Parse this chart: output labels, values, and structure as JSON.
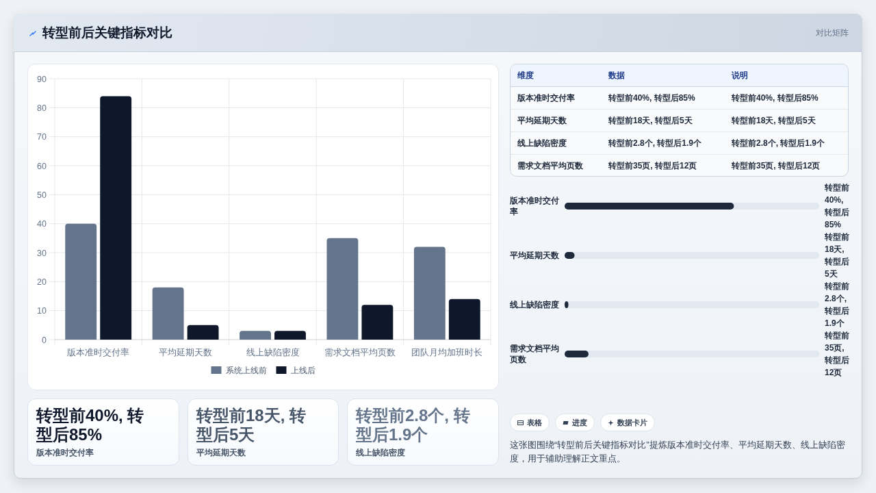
{
  "chart_data": [
    {
      "type": "other",
      "title": "转型前后关键指标对比",
      "subtitle": "对比矩阵"
    },
    {
      "type": "bar",
      "categories": [
        "版本准时交付率",
        "平均延期天数",
        "线上缺陷密度",
        "需求文档平均页数",
        "团队月均加班时长"
      ],
      "series": [
        {
          "name": "系统上线前",
          "color": "#64748b",
          "values": [
            40,
            18,
            3,
            35,
            32
          ]
        },
        {
          "name": "上线后",
          "color": "#0f172a",
          "values": [
            84,
            5,
            3,
            12,
            14
          ]
        }
      ],
      "ylim": [
        0,
        90
      ],
      "yticks": [
        0,
        10,
        20,
        30,
        40,
        50,
        60,
        70,
        80,
        90
      ],
      "grid": true,
      "legend": "bottom"
    },
    {
      "type": "other",
      "categories": [
        "维度",
        "数据",
        "说明"
      ],
      "y_categories": [
        "版本准时交付率",
        "平均延期天数",
        "线上缺陷密度",
        "需求文档平均页数"
      ],
      "cell_labels": [
        [
          "转型前40%, 转型后85%",
          "转型前40%, 转型后85%"
        ],
        [
          "转型前18天, 转型后5天",
          "转型前18天, 转型后5天"
        ],
        [
          "转型前2.8个, 转型后1.9个",
          "转型前2.8个, 转型后1.9个"
        ],
        [
          "转型前35页, 转型后12页",
          "转型前35页, 转型后12页"
        ]
      ]
    },
    {
      "type": "bar",
      "orientation": "horizontal",
      "categories": [
        "版本准时交付率",
        "平均延期天数",
        "线上缺陷密度",
        "需求文档平均页数"
      ],
      "values": [
        85,
        5,
        1.9,
        12
      ],
      "color": "#1e293b",
      "value_labels": [
        "转型前40%, 转型后85%",
        "转型前18天, 转型后5天",
        "转型前2.8个, 转型后1.9个",
        "转型前35页, 转型后12页"
      ]
    },
    {
      "type": "other",
      "title": "转型前40%, 转型后85%",
      "subtitle": "版本准时交付率"
    },
    {
      "type": "other",
      "title": "转型前18天, 转型后5天",
      "subtitle": "平均延期天数"
    },
    {
      "type": "other",
      "title": "转型前2.8个, 转型后1.9个",
      "subtitle": "线上缺陷密度"
    },
    {
      "type": "other",
      "categories": [
        "表格",
        "进度",
        "数据卡片"
      ],
      "annotations": [
        "这张图围绕“转型前后关键指标对比”提炼版本准时交付率、平均延期天数、线上缺陷密度，用于辅助理解正文重点。"
      ]
    }
  ]
}
